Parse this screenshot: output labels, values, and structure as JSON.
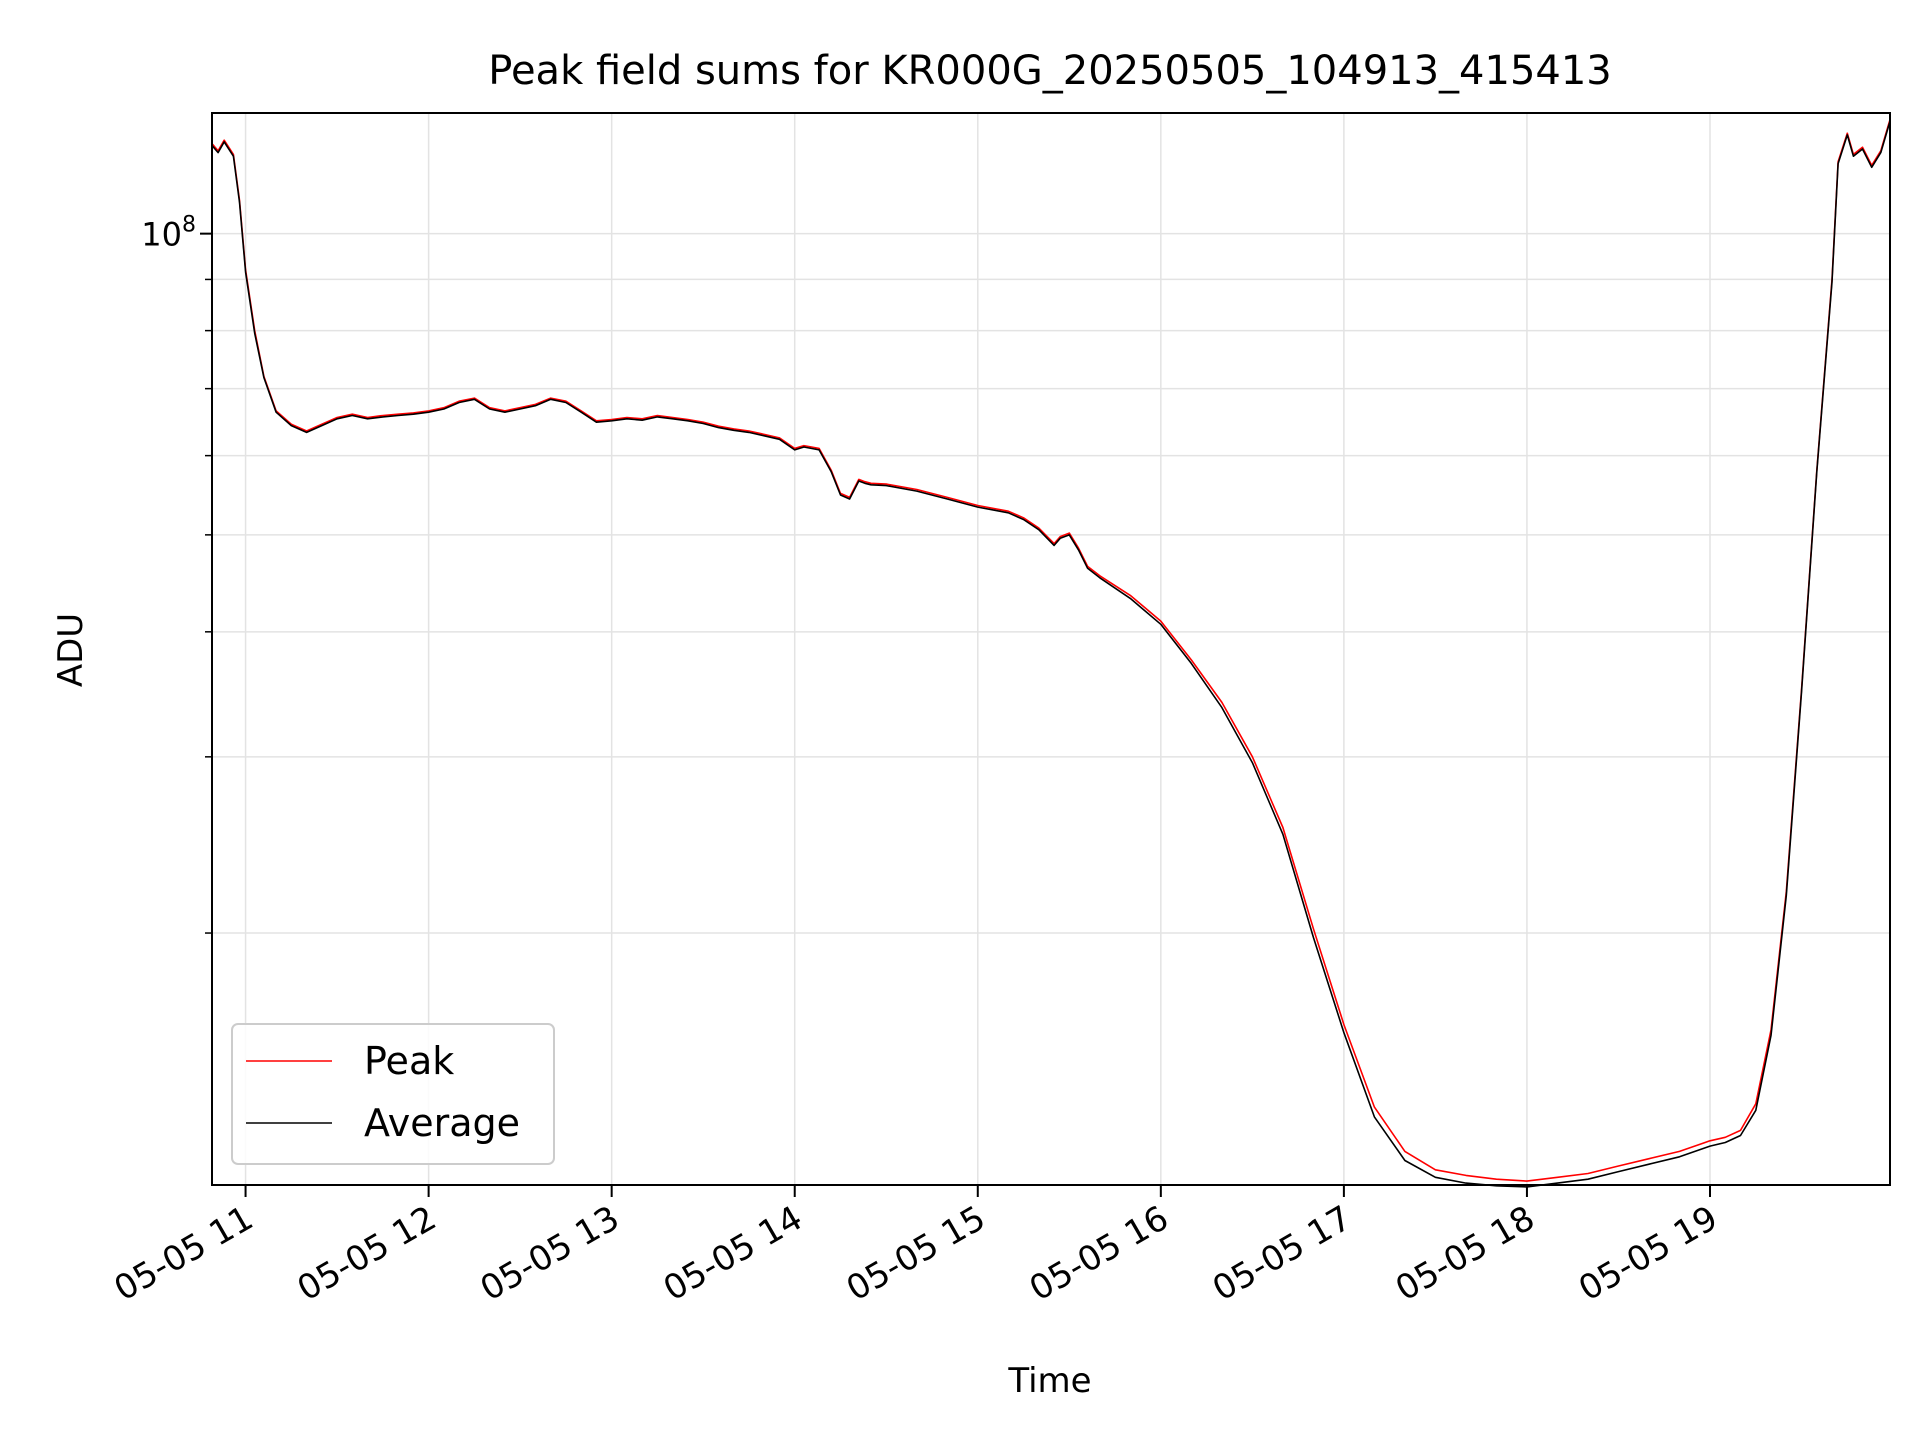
{
  "chart_data": {
    "type": "line",
    "title": "Peak field sums for KR000G_20250505_104913_415413",
    "xlabel": "Time",
    "ylabel": "ADU",
    "x_range": [
      "2025-05-05 10:49",
      "2025-05-05 19:59"
    ],
    "y_range": [
      11200000,
      132000000
    ],
    "y_scale": "log",
    "grid": true,
    "legend_position": "lower-left",
    "x_tick_labels": [
      "05-05 11",
      "05-05 12",
      "05-05 13",
      "05-05 14",
      "05-05 15",
      "05-05 16",
      "05-05 17",
      "05-05 18",
      "05-05 19"
    ],
    "y_tick_labels": [
      {
        "base": "10",
        "exp": "8"
      }
    ],
    "series": [
      {
        "name": "Peak",
        "color": "#ff0000",
        "x": [
          "10:49",
          "10:51",
          "10:53",
          "10:56",
          "10:58",
          "11:00",
          "11:03",
          "11:06",
          "11:10",
          "11:15",
          "11:20",
          "11:25",
          "11:30",
          "11:35",
          "11:40",
          "11:45",
          "11:50",
          "11:55",
          "12:00",
          "12:05",
          "12:10",
          "12:15",
          "12:20",
          "12:25",
          "12:30",
          "12:35",
          "12:40",
          "12:45",
          "12:50",
          "12:55",
          "13:00",
          "13:05",
          "13:10",
          "13:15",
          "13:20",
          "13:25",
          "13:30",
          "13:35",
          "13:40",
          "13:45",
          "13:50",
          "13:55",
          "14:00",
          "14:03",
          "14:08",
          "14:12",
          "14:15",
          "14:18",
          "14:21",
          "14:23",
          "14:25",
          "14:30",
          "14:40",
          "14:50",
          "15:00",
          "15:10",
          "15:15",
          "15:20",
          "15:25",
          "15:27",
          "15:30",
          "15:33",
          "15:36",
          "15:40",
          "15:50",
          "16:00",
          "16:10",
          "16:20",
          "16:30",
          "16:40",
          "16:50",
          "17:00",
          "17:10",
          "17:20",
          "17:30",
          "17:40",
          "17:50",
          "18:00",
          "18:10",
          "18:20",
          "18:30",
          "18:40",
          "18:50",
          "19:00",
          "19:05",
          "19:10",
          "19:15",
          "19:20",
          "19:25",
          "19:30",
          "19:35",
          "19:40",
          "19:42",
          "19:45",
          "19:47",
          "19:50",
          "19:53",
          "19:56",
          "19:59"
        ],
        "y": [
          123000000,
          121000000,
          124000000,
          120000000,
          108000000,
          92000000,
          80000000,
          72000000,
          66500000,
          64500000,
          63500000,
          64500000,
          65500000,
          66000000,
          65500000,
          65800000,
          66000000,
          66200000,
          66500000,
          67000000,
          68000000,
          68500000,
          67000000,
          66500000,
          67000000,
          67500000,
          68500000,
          68000000,
          66500000,
          65000000,
          65200000,
          65500000,
          65300000,
          65800000,
          65500000,
          65200000,
          64800000,
          64200000,
          63800000,
          63500000,
          63000000,
          62500000,
          61000000,
          61400000,
          61000000,
          58000000,
          55000000,
          54500000,
          56800000,
          56500000,
          56300000,
          56200000,
          55500000,
          54500000,
          53500000,
          52800000,
          52000000,
          50800000,
          49000000,
          49800000,
          50200000,
          48500000,
          46500000,
          45500000,
          43500000,
          41000000,
          37500000,
          34000000,
          30000000,
          25500000,
          20200000,
          16200000,
          13400000,
          12100000,
          11600000,
          11450000,
          11350000,
          11300000,
          11400000,
          11500000,
          11700000,
          11900000,
          12100000,
          12400000,
          12500000,
          12700000,
          13500000,
          16000000,
          22000000,
          35000000,
          58000000,
          90000000,
          118000000,
          126000000,
          120000000,
          122000000,
          117000000,
          121000000,
          130000000
        ]
      },
      {
        "name": "Average",
        "color": "#000000",
        "x": [
          "10:49",
          "10:51",
          "10:53",
          "10:56",
          "10:58",
          "11:00",
          "11:03",
          "11:06",
          "11:10",
          "11:15",
          "11:20",
          "11:25",
          "11:30",
          "11:35",
          "11:40",
          "11:45",
          "11:50",
          "11:55",
          "12:00",
          "12:05",
          "12:10",
          "12:15",
          "12:20",
          "12:25",
          "12:30",
          "12:35",
          "12:40",
          "12:45",
          "12:50",
          "12:55",
          "13:00",
          "13:05",
          "13:10",
          "13:15",
          "13:20",
          "13:25",
          "13:30",
          "13:35",
          "13:40",
          "13:45",
          "13:50",
          "13:55",
          "14:00",
          "14:03",
          "14:08",
          "14:12",
          "14:15",
          "14:18",
          "14:21",
          "14:23",
          "14:25",
          "14:30",
          "14:40",
          "14:50",
          "15:00",
          "15:10",
          "15:15",
          "15:20",
          "15:25",
          "15:27",
          "15:30",
          "15:33",
          "15:36",
          "15:40",
          "15:50",
          "16:00",
          "16:10",
          "16:20",
          "16:30",
          "16:40",
          "16:50",
          "17:00",
          "17:10",
          "17:20",
          "17:30",
          "17:40",
          "17:50",
          "18:00",
          "18:10",
          "18:20",
          "18:30",
          "18:40",
          "18:50",
          "19:00",
          "19:05",
          "19:10",
          "19:15",
          "19:20",
          "19:25",
          "19:30",
          "19:35",
          "19:40",
          "19:42",
          "19:45",
          "19:47",
          "19:50",
          "19:53",
          "19:56",
          "19:59"
        ],
        "y": [
          122500000,
          120500000,
          123500000,
          119500000,
          107500000,
          91500000,
          79500000,
          71800000,
          66300000,
          64300000,
          63300000,
          64300000,
          65300000,
          65800000,
          65300000,
          65600000,
          65800000,
          66000000,
          66300000,
          66800000,
          67800000,
          68300000,
          66800000,
          66300000,
          66800000,
          67300000,
          68300000,
          67800000,
          66300000,
          64800000,
          65000000,
          65300000,
          65100000,
          65600000,
          65300000,
          65000000,
          64600000,
          64000000,
          63600000,
          63300000,
          62800000,
          62300000,
          60800000,
          61200000,
          60800000,
          57800000,
          54800000,
          54300000,
          56600000,
          56300000,
          56100000,
          56000000,
          55300000,
          54300000,
          53300000,
          52600000,
          51800000,
          50600000,
          48800000,
          49600000,
          50000000,
          48300000,
          46300000,
          45300000,
          43200000,
          40700000,
          37200000,
          33600000,
          29600000,
          25100000,
          19800000,
          15900000,
          13100000,
          11850000,
          11400000,
          11250000,
          11180000,
          11150000,
          11250000,
          11350000,
          11550000,
          11750000,
          11950000,
          12250000,
          12350000,
          12550000,
          13300000,
          15800000,
          21800000,
          34800000,
          57800000,
          89500000,
          117500000,
          125500000,
          119500000,
          121500000,
          116500000,
          120500000,
          129500000
        ]
      }
    ]
  }
}
